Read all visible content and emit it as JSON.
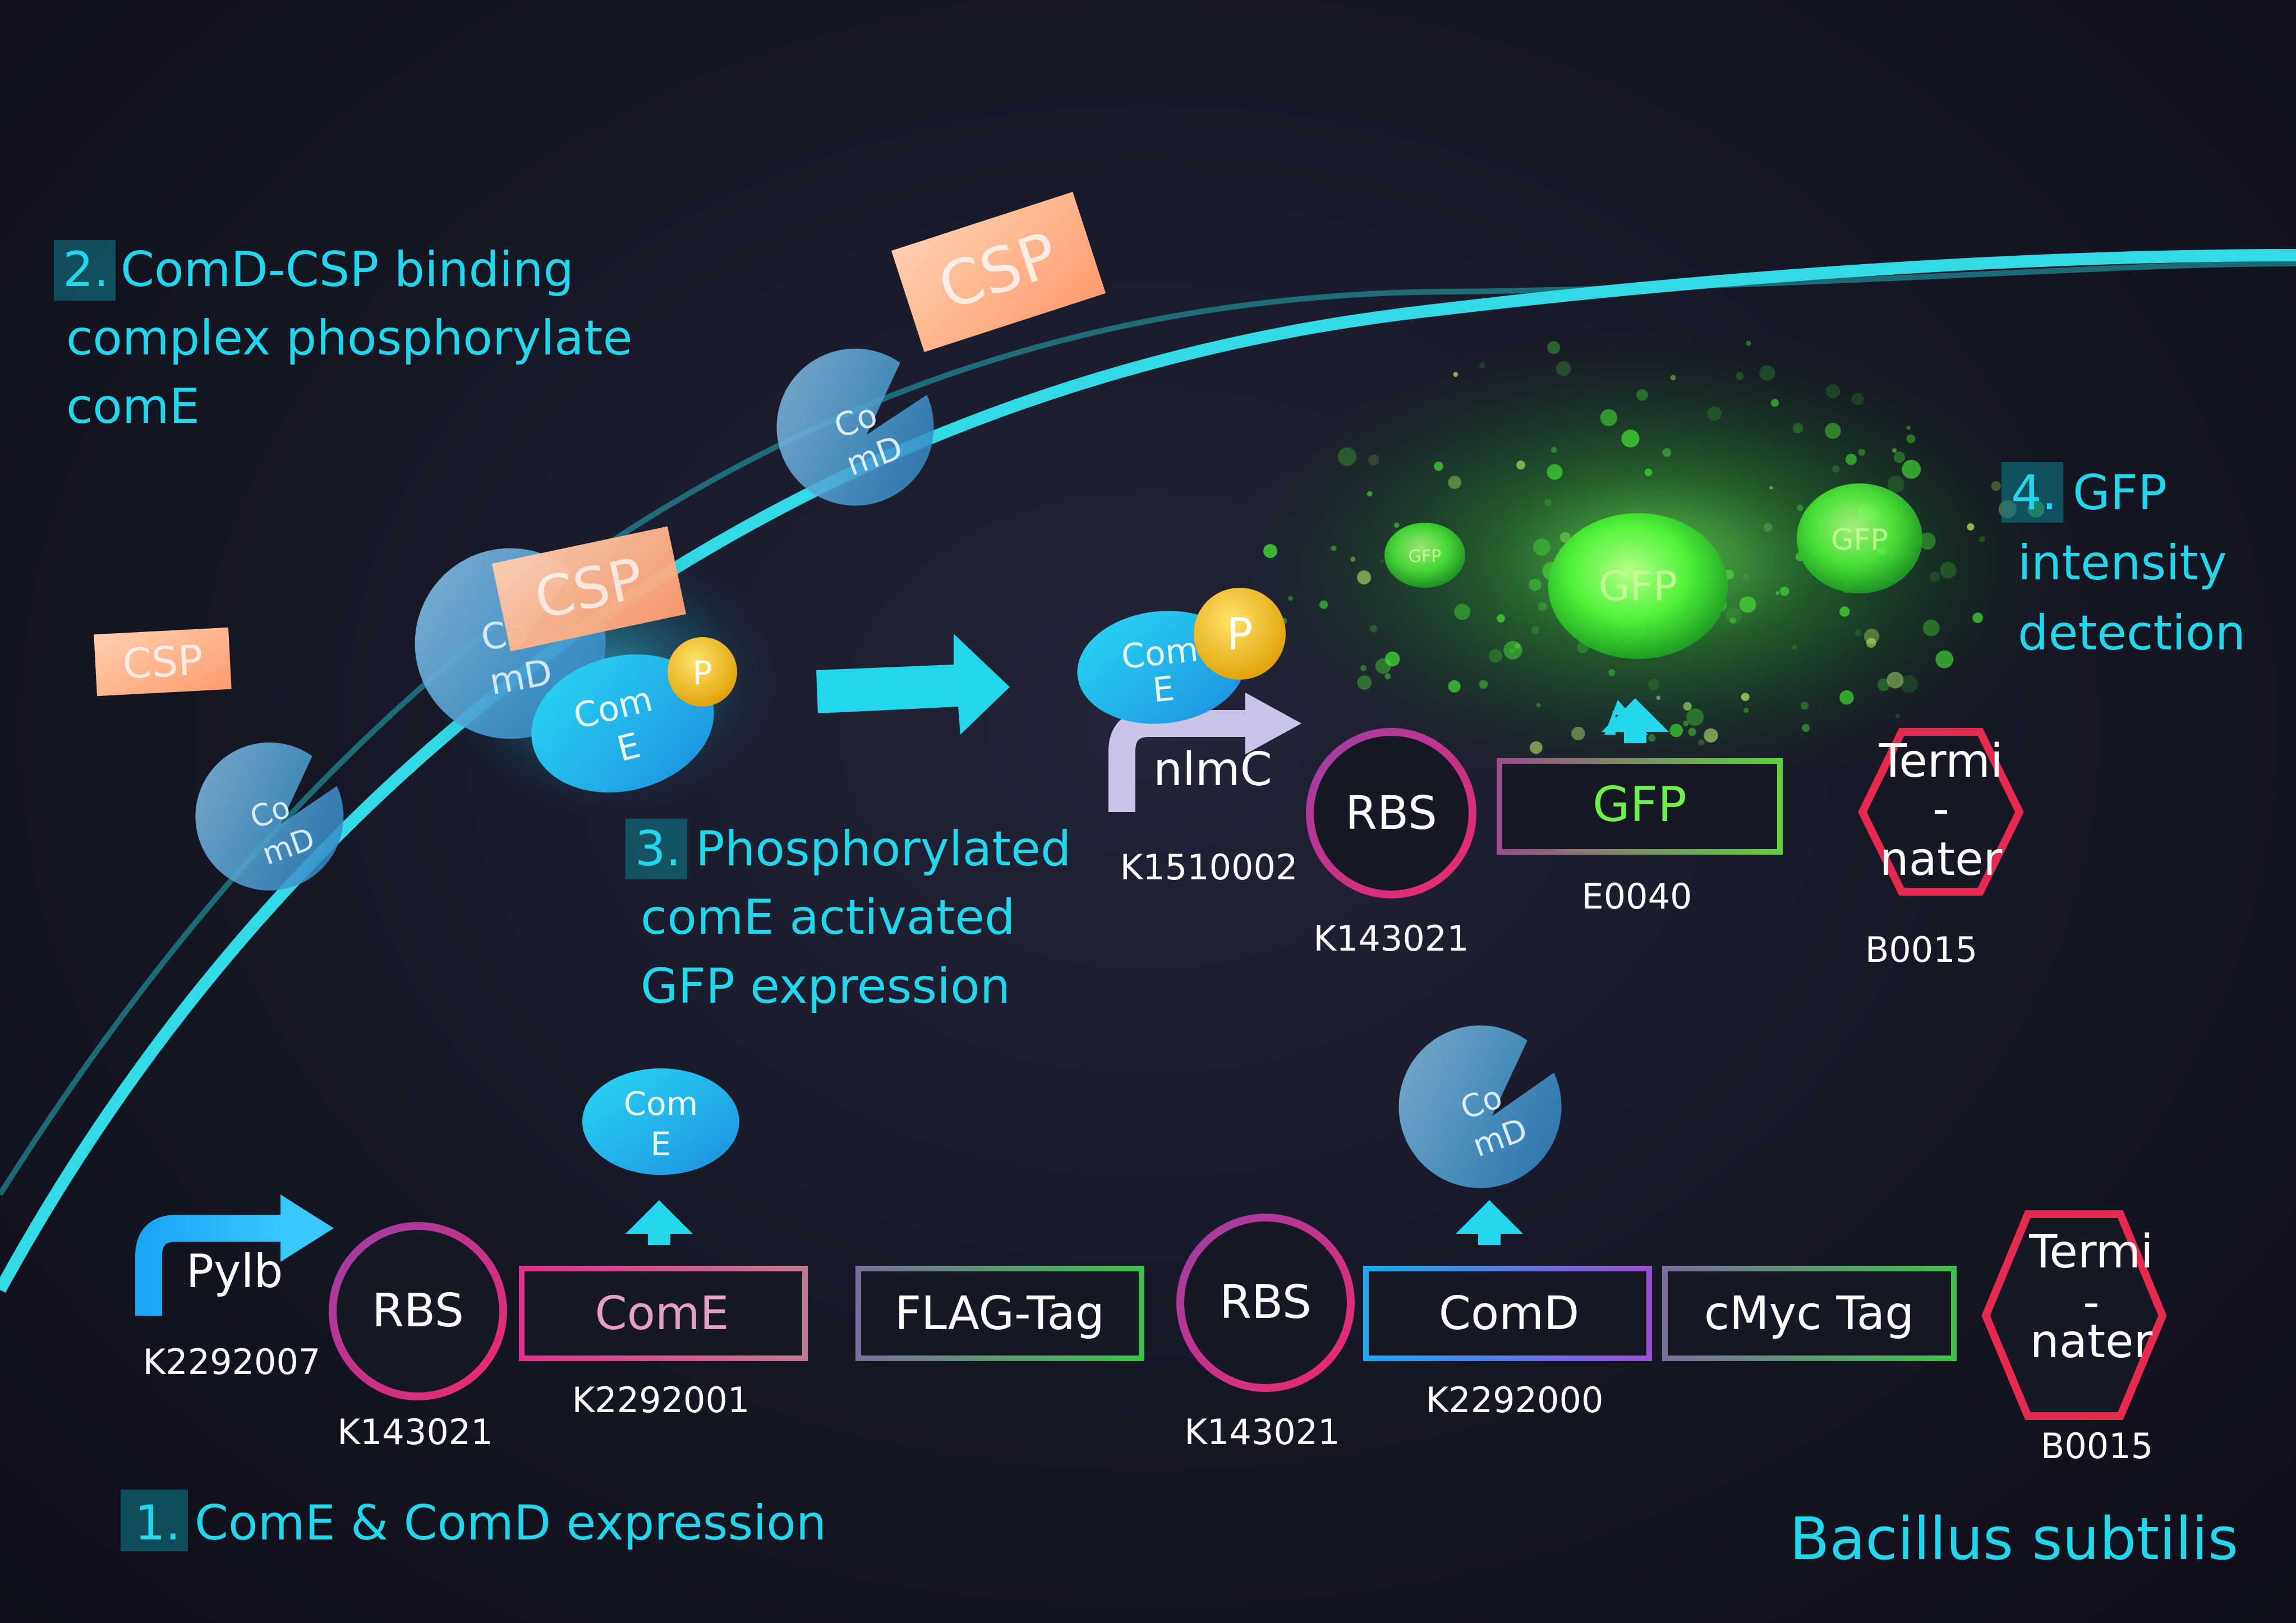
{
  "steps": {
    "s1": {
      "num": "1.",
      "lines": [
        "ComE & ComD expression"
      ]
    },
    "s2": {
      "num": "2.",
      "lines": [
        "ComD-CSP binding",
        "complex phosphorylate",
        "comE"
      ]
    },
    "s3": {
      "num": "3.",
      "lines": [
        "Phosphorylated",
        "comE activated",
        "GFP expression"
      ]
    },
    "s4": {
      "num": "4.",
      "lines": [
        "GFP",
        "intensity",
        "detection"
      ]
    }
  },
  "organism": "Bacillus subtilis",
  "molecules": {
    "csp": "CSP",
    "comd": [
      "Co",
      "mD"
    ],
    "come": [
      "Com",
      "E"
    ],
    "phosphate": "P",
    "gfp": "GFP"
  },
  "reporter_construct": {
    "promoter": {
      "label": "nlmC",
      "id": "K1510002"
    },
    "rbs": {
      "label": "RBS",
      "id": "K143021"
    },
    "gene": {
      "label": "GFP",
      "id": "E0040"
    },
    "terminator": {
      "lines": [
        "Termi",
        "-",
        "nater"
      ],
      "id": "B0015"
    }
  },
  "expression_construct": {
    "promoter": {
      "label": "Pylb",
      "id": "K2292007"
    },
    "rbs1": {
      "label": "RBS",
      "id": "K143021"
    },
    "come": {
      "label": "ComE",
      "id": "K2292001"
    },
    "flag": {
      "label": "FLAG-Tag"
    },
    "rbs2": {
      "label": "RBS",
      "id": "K143021"
    },
    "comd": {
      "label": "ComD",
      "id": "K2292000"
    },
    "cmyc": {
      "label": "cMyc Tag"
    },
    "terminator": {
      "lines": [
        "Termi",
        "-",
        "nater"
      ],
      "id": "B0015"
    }
  },
  "colors": {
    "membrane": "#33d9e6",
    "step_text": "#22d6ec",
    "csp": "#ffb58f",
    "phosphate": "#f2c51d",
    "gfp": "#4df23a",
    "rbs": "#d8307a",
    "terminator": "#e8294f"
  }
}
